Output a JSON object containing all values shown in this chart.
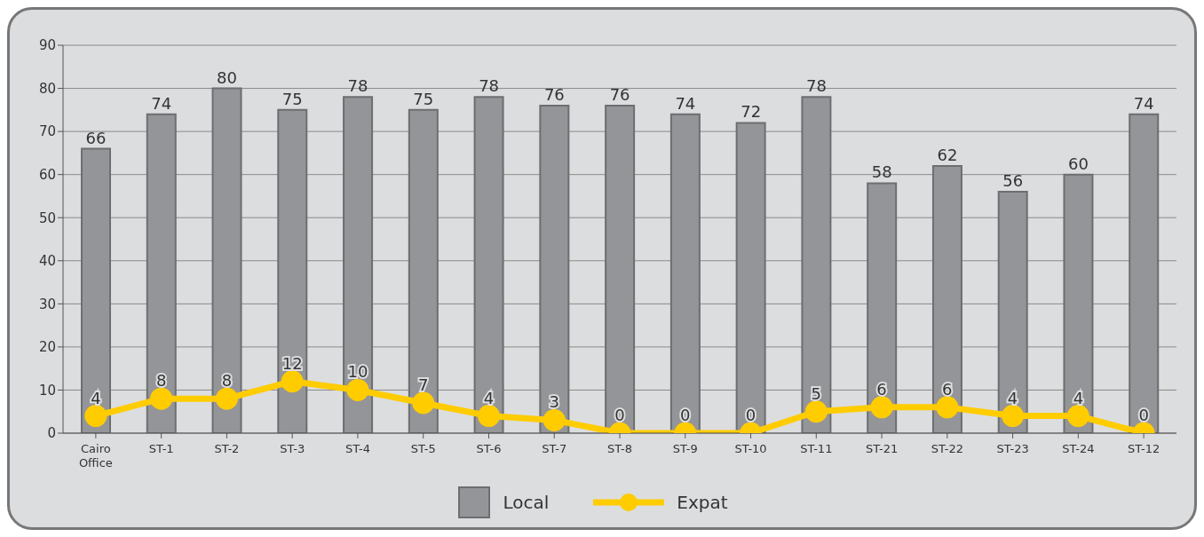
{
  "chart_data": {
    "type": "bar",
    "categories": [
      "Cairo Office",
      "ST-1",
      "ST-2",
      "ST-3",
      "ST-4",
      "ST-5",
      "ST-6",
      "ST-7",
      "ST-8",
      "ST-9",
      "ST-10",
      "ST-11",
      "ST-21",
      "ST-22",
      "ST-23",
      "ST-24",
      "ST-12"
    ],
    "series": [
      {
        "name": "Local",
        "color": "#949598",
        "values": [
          66,
          74,
          80,
          75,
          78,
          75,
          78,
          76,
          76,
          74,
          72,
          78,
          58,
          62,
          56,
          60,
          74
        ]
      },
      {
        "name": "Expat",
        "type": "line",
        "color": "#ffcc00",
        "marker": "circle",
        "values": [
          4,
          8,
          8,
          12,
          10,
          7,
          4,
          3,
          0,
          0,
          0,
          5,
          6,
          6,
          4,
          4,
          0
        ]
      }
    ],
    "ylim": [
      0,
      90
    ],
    "yticks": [
      0,
      10,
      20,
      30,
      40,
      50,
      60,
      70,
      80,
      90
    ],
    "grid": "y",
    "legend": "bottom",
    "data_labels": true
  }
}
